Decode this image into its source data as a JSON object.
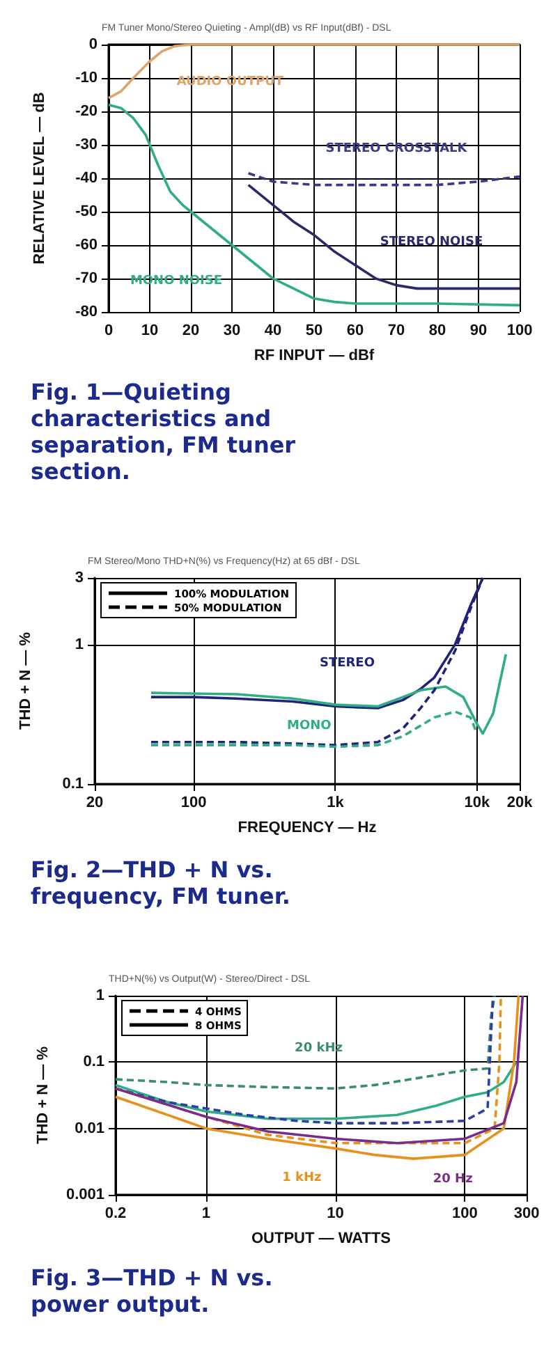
{
  "chart_data": [
    {
      "type": "line",
      "title": "FM Tuner Mono/Stereo Quieting - Ampl(dB) vs RF Input(dBf) - DSL",
      "xlabel": "RF INPUT — dBf",
      "ylabel": "RELATIVE LEVEL — dB",
      "xlim": [
        0,
        100
      ],
      "xticks": [
        0,
        10,
        20,
        30,
        40,
        50,
        60,
        70,
        80,
        90,
        100
      ],
      "ylim": [
        -80,
        0
      ],
      "yticks": [
        -80,
        -70,
        -60,
        -50,
        -40,
        -30,
        -20,
        -10,
        0
      ],
      "grid": true,
      "marker": "none",
      "series": [
        {
          "name": "AUDIO OUTPUT",
          "color": "#e0a468",
          "line_style": "solid",
          "x": [
            0,
            3,
            6,
            10,
            13,
            16,
            20,
            30,
            50,
            100
          ],
          "values": [
            -16,
            -14,
            -10,
            -5,
            -2,
            -0.5,
            0,
            0,
            0,
            0
          ]
        },
        {
          "name": "MONO NOISE",
          "color": "#2fae86",
          "line_style": "solid",
          "x": [
            0,
            3,
            6,
            9,
            12,
            15,
            18,
            20,
            25,
            30,
            35,
            40,
            45,
            50,
            55,
            60,
            70,
            80,
            100
          ],
          "values": [
            -18,
            -19,
            -22,
            -27,
            -36,
            -44,
            -48,
            -50,
            -55,
            -60,
            -65,
            -70,
            -73,
            -76,
            -77,
            -77.5,
            -77.5,
            -77.5,
            -78
          ]
        },
        {
          "name": "STEREO CROSSTALK",
          "color": "#3a3a8a",
          "line_style": "dashed",
          "x": [
            34,
            40,
            50,
            60,
            70,
            80,
            90,
            100
          ],
          "values": [
            -38.5,
            -41,
            -42,
            -42,
            -42,
            -42,
            -41,
            -39.5
          ]
        },
        {
          "name": "STEREO NOISE",
          "color": "#2a2a6a",
          "line_style": "solid",
          "x": [
            34,
            40,
            45,
            50,
            55,
            60,
            65,
            70,
            75,
            80,
            90,
            100
          ],
          "values": [
            -42,
            -48,
            -53,
            -57,
            -62,
            -66,
            -70,
            -72,
            -73,
            -73,
            -73,
            -73
          ]
        }
      ],
      "annotations": [
        "Fig. 1—Quieting characteristics and separation, FM tuner section."
      ]
    },
    {
      "type": "line",
      "title": "FM Stereo/Mono THD+N(%) vs Frequency(Hz) at 65 dBf - DSL",
      "xlabel": "FREQUENCY — Hz",
      "ylabel": "THD + N — %",
      "log": "xy",
      "xlim": [
        20,
        20000
      ],
      "xticks": [
        20,
        100,
        {
          "value": 1000,
          "label": "1k"
        },
        {
          "value": 10000,
          "label": "10k"
        },
        {
          "value": 20000,
          "label": "20k"
        }
      ],
      "ylim": [
        0.1,
        3
      ],
      "yticks": [
        0.1,
        1,
        3
      ],
      "grid": true,
      "marker": "none",
      "series": [
        {
          "name": "STEREO",
          "color": "#1f237a",
          "line_style": "solid",
          "x": [
            50,
            100,
            200,
            500,
            1000,
            2000,
            3000,
            4000,
            5000,
            7000,
            9000,
            11000
          ],
          "values": [
            0.42,
            0.42,
            0.41,
            0.39,
            0.36,
            0.35,
            0.4,
            0.48,
            0.58,
            1,
            1.9,
            3
          ]
        },
        {
          "name": "MONO",
          "color": "#2fae86",
          "line_style": "solid",
          "x": [
            50,
            200,
            500,
            1000,
            2000,
            3000,
            4000,
            6000,
            8000,
            10000,
            11000,
            13000,
            16000
          ],
          "values": [
            0.45,
            0.44,
            0.41,
            0.37,
            0.36,
            0.42,
            0.47,
            0.5,
            0.42,
            0.27,
            0.23,
            0.32,
            0.85
          ]
        },
        {
          "color": "#1f237a",
          "line_style": "dashed",
          "x": [
            50,
            200,
            500,
            1000,
            2000,
            3000,
            4000,
            5000,
            7000,
            9000,
            11000
          ],
          "values": [
            0.2,
            0.2,
            0.195,
            0.19,
            0.2,
            0.25,
            0.35,
            0.47,
            0.9,
            1.8,
            3
          ]
        },
        {
          "color": "#2fae86",
          "line_style": "dashed",
          "x": [
            50,
            500,
            1000,
            2000,
            3000,
            5000,
            7000,
            9000,
            10000
          ],
          "values": [
            0.19,
            0.19,
            0.185,
            0.19,
            0.22,
            0.3,
            0.33,
            0.3,
            0.23
          ]
        }
      ],
      "annotations": [
        "100% MODULATION",
        "50% MODULATION",
        "Fig. 2—THD + N vs. frequency, FM tuner."
      ]
    },
    {
      "type": "line",
      "title": "THD+N(%) vs Output(W) - Stereo/Direct - DSL",
      "xlabel": "OUTPUT — WATTS",
      "ylabel": "THD + N — %",
      "log": "xy",
      "xlim": [
        0.2,
        300
      ],
      "xticks": [
        0.2,
        1,
        10,
        100,
        300
      ],
      "ylim": [
        0.001,
        1
      ],
      "yticks": [
        0.001,
        0.01,
        0.1,
        1
      ],
      "grid": true,
      "marker": "none",
      "series": [
        {
          "name": "20 kHz",
          "color": "#3a8a78",
          "line_style": "dashed",
          "x": [
            0.2,
            0.5,
            1,
            3,
            10,
            20,
            50,
            100,
            150,
            160,
            170
          ],
          "values": [
            0.055,
            0.05,
            0.045,
            0.042,
            0.04,
            0.045,
            0.06,
            0.075,
            0.08,
            0.5,
            1
          ]
        },
        {
          "color": "#2fae86",
          "line_style": "solid",
          "x": [
            0.2,
            0.5,
            1,
            3,
            10,
            30,
            60,
            100,
            150,
            200,
            250
          ],
          "values": [
            0.045,
            0.025,
            0.018,
            0.014,
            0.014,
            0.016,
            0.022,
            0.03,
            0.035,
            0.05,
            0.1
          ]
        },
        {
          "color": "#2b3fa8",
          "line_style": "dashed",
          "x": [
            0.2,
            0.5,
            1,
            2,
            5,
            10,
            30,
            100,
            150,
            160,
            165
          ],
          "values": [
            0.04,
            0.025,
            0.02,
            0.016,
            0.013,
            0.012,
            0.012,
            0.013,
            0.02,
            0.3,
            1
          ]
        },
        {
          "color": "#e8901a",
          "line_style": "dashed",
          "x": [
            0.2,
            1,
            3,
            10,
            30,
            100,
            170,
            185,
            190
          ],
          "values": [
            0.04,
            0.015,
            0.008,
            0.006,
            0.006,
            0.006,
            0.01,
            0.1,
            1
          ]
        },
        {
          "name": "1 kHz",
          "color": "#e8901a",
          "line_style": "solid",
          "x": [
            0.2,
            1,
            3,
            10,
            20,
            40,
            100,
            200,
            240,
            260
          ],
          "values": [
            0.03,
            0.01,
            0.007,
            0.005,
            0.004,
            0.0035,
            0.004,
            0.01,
            0.1,
            1
          ]
        },
        {
          "name": "20 Hz",
          "color": "#7a2c8a",
          "line_style": "solid",
          "x": [
            0.2,
            1,
            3,
            10,
            30,
            100,
            200,
            250,
            280
          ],
          "values": [
            0.04,
            0.015,
            0.009,
            0.007,
            0.006,
            0.007,
            0.012,
            0.05,
            1
          ]
        }
      ],
      "annotations": [
        "4 OHMS",
        "8 OHMS",
        "Fig. 3—THD + N vs. power output."
      ]
    }
  ]
}
